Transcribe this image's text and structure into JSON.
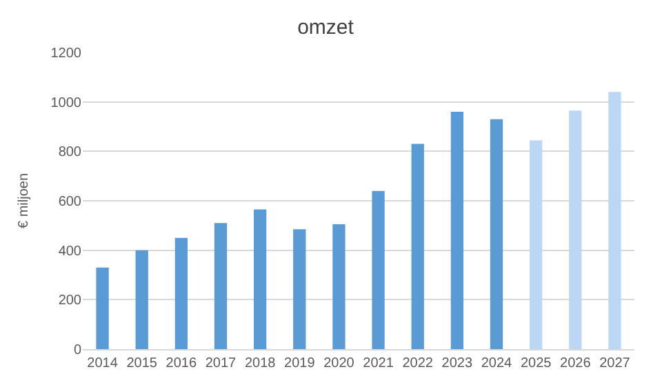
{
  "chart_data": {
    "type": "bar",
    "title": "omzet",
    "ylabel": "€ miljoen",
    "categories": [
      "2014",
      "2015",
      "2016",
      "2017",
      "2018",
      "2019",
      "2020",
      "2021",
      "2022",
      "2023",
      "2024",
      "2025",
      "2026",
      "2027"
    ],
    "values": [
      330,
      400,
      450,
      510,
      565,
      485,
      505,
      640,
      830,
      960,
      930,
      845,
      965,
      1040
    ],
    "colors": [
      "#5b9bd5",
      "#5b9bd5",
      "#5b9bd5",
      "#5b9bd5",
      "#5b9bd5",
      "#5b9bd5",
      "#5b9bd5",
      "#5b9bd5",
      "#5b9bd5",
      "#5b9bd5",
      "#5b9bd5",
      "#bcd6f6",
      "#bcd6f6",
      "#bcd6f6"
    ],
    "ylim": [
      0,
      1200
    ],
    "yticks": [
      0,
      200,
      400,
      600,
      800,
      1000,
      1200
    ],
    "grid": "y"
  }
}
